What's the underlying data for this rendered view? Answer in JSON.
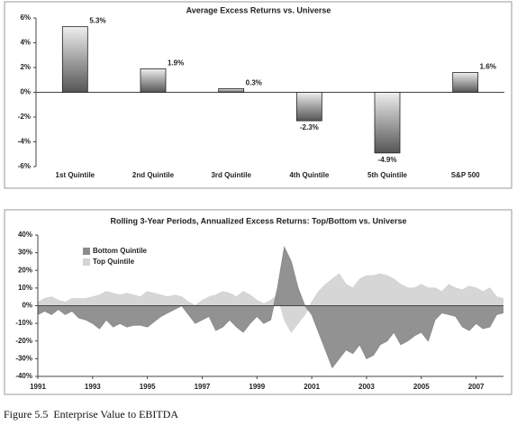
{
  "chart_data": [
    {
      "type": "bar",
      "title": "Average Excess Returns vs. Universe",
      "categories": [
        "1st Quintile",
        "2nd Quintile",
        "3rd Quintile",
        "4th Quintile",
        "5th Quintile",
        "S&P 500"
      ],
      "values": [
        5.3,
        1.9,
        0.3,
        -2.3,
        -4.9,
        1.6
      ],
      "value_labels": [
        "5.3%",
        "1.9%",
        "0.3%",
        "-2.3%",
        "-4.9%",
        "1.6%"
      ],
      "color": "#555555",
      "ylim": [
        -6,
        6
      ],
      "yticks": [
        {
          "value": 6,
          "label": "6%"
        },
        {
          "value": 4,
          "label": "4%"
        },
        {
          "value": 2,
          "label": "2%"
        },
        {
          "value": 0,
          "label": "0%"
        },
        {
          "value": -2,
          "label": "-2%"
        },
        {
          "value": -4,
          "label": "-4%"
        },
        {
          "value": -6,
          "label": "-6%"
        }
      ]
    },
    {
      "type": "area",
      "title": "Rolling 3-Year Periods, Annualized Excess Returns: Top/Bottom vs. Universe",
      "x": [
        1991,
        1991.25,
        1991.5,
        1991.75,
        1992,
        1992.25,
        1992.5,
        1992.75,
        1993,
        1993.25,
        1993.5,
        1993.75,
        1994,
        1994.25,
        1994.5,
        1994.75,
        1995,
        1995.25,
        1995.5,
        1995.75,
        1996,
        1996.25,
        1996.5,
        1996.75,
        1997,
        1997.25,
        1997.5,
        1997.75,
        1998,
        1998.25,
        1998.5,
        1998.75,
        1999,
        1999.25,
        1999.5,
        1999.75,
        2000,
        2000.25,
        2000.5,
        2000.75,
        2001,
        2001.25,
        2001.5,
        2001.75,
        2002,
        2002.25,
        2002.5,
        2002.75,
        2003,
        2003.25,
        2003.5,
        2003.75,
        2004,
        2004.25,
        2004.5,
        2004.75,
        2005,
        2005.25,
        2005.5,
        2005.75,
        2006,
        2006.25,
        2006.5,
        2006.75,
        2007,
        2007.25,
        2007.5,
        2007.75,
        2008
      ],
      "series": [
        {
          "name": "Bottom Quintile",
          "color": "#8c8c8c",
          "values": [
            -5,
            -3,
            -5,
            -2,
            -5,
            -3,
            -7,
            -8,
            -10,
            -13,
            -8,
            -12,
            -10,
            -12,
            -11,
            -11,
            -12,
            -9,
            -6,
            -4,
            -2,
            0,
            -5,
            -10,
            -8,
            -6,
            -14,
            -12,
            -8,
            -12,
            -15,
            -10,
            -6,
            -10,
            -8,
            10,
            33,
            25,
            10,
            0,
            -5,
            -15,
            -25,
            -35,
            -30,
            -25,
            -27,
            -22,
            -30,
            -28,
            -22,
            -20,
            -15,
            -22,
            -20,
            -17,
            -15,
            -20,
            -8,
            -4,
            -5,
            -6,
            -12,
            -14,
            -10,
            -13,
            -12,
            -5,
            -4
          ]
        },
        {
          "name": "Top Quintile",
          "color": "#d4d4d4",
          "values": [
            2,
            4,
            5,
            3,
            2,
            4,
            4,
            4,
            5,
            6,
            8,
            7,
            6,
            7,
            6,
            5,
            8,
            7,
            6,
            5,
            6,
            5,
            2,
            0,
            3,
            5,
            6,
            8,
            7,
            5,
            8,
            6,
            3,
            1,
            3,
            6,
            -8,
            -15,
            -10,
            -5,
            2,
            8,
            12,
            15,
            18,
            12,
            10,
            15,
            17,
            17,
            18,
            17,
            15,
            12,
            10,
            10,
            12,
            10,
            10,
            8,
            12,
            10,
            9,
            11,
            10,
            8,
            10,
            5,
            4
          ]
        }
      ],
      "xlim": [
        1991,
        2008
      ],
      "xticks": [
        1991,
        1993,
        1995,
        1997,
        1999,
        2001,
        2003,
        2005,
        2007
      ],
      "ylim": [
        -40,
        40
      ],
      "yticks": [
        {
          "value": 40,
          "label": "40%"
        },
        {
          "value": 30,
          "label": "30%"
        },
        {
          "value": 20,
          "label": "20%"
        },
        {
          "value": 10,
          "label": "10%"
        },
        {
          "value": 0,
          "label": "0%"
        },
        {
          "value": -10,
          "label": "-10%"
        },
        {
          "value": -20,
          "label": "-20%"
        },
        {
          "value": -30,
          "label": "-30%"
        },
        {
          "value": -40,
          "label": "-40%"
        }
      ],
      "legend": "upper left"
    }
  ],
  "caption": "Figure 5.5  Enterprise Value to EBITDA"
}
